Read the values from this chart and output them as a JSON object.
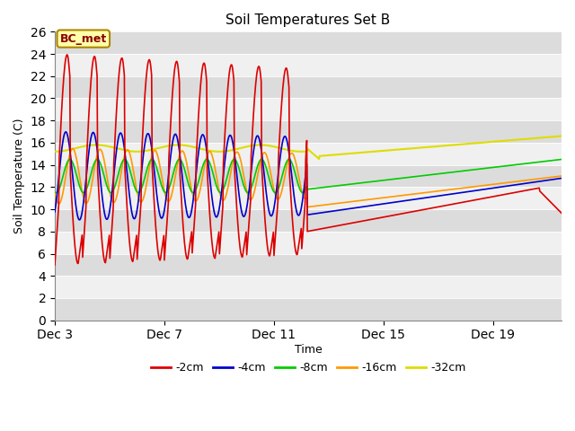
{
  "title": "Soil Temperatures Set B",
  "xlabel": "Time",
  "ylabel": "Soil Temperature (C)",
  "ylim": [
    0,
    26
  ],
  "yticks": [
    0,
    2,
    4,
    6,
    8,
    10,
    12,
    14,
    16,
    18,
    20,
    22,
    24,
    26
  ],
  "xtick_positions": [
    0,
    4,
    8,
    12,
    16
  ],
  "xtick_labels": [
    "Dec 3",
    "Dec 7",
    "Dec 11",
    "Dec 15",
    "Dec 19"
  ],
  "xlim": [
    0,
    18.5
  ],
  "bg_color": "#f0f0f0",
  "plot_bg_light": "#f0f0f0",
  "plot_bg_dark": "#dcdcdc",
  "annotation_text": "BC_met",
  "annotation_bg": "#ffffaa",
  "annotation_border": "#aa8800",
  "legend_entries": [
    "-2cm",
    "-4cm",
    "-8cm",
    "-16cm",
    "-32cm"
  ],
  "line_colors": [
    "#dd0000",
    "#0000cc",
    "#00cc00",
    "#ff9900",
    "#dddd00"
  ],
  "oscillation_end": 9.2,
  "total_days": 18.5,
  "post_start_2cm": 8.0,
  "post_end_2cm": 12.3,
  "post_start_4cm": 9.5,
  "post_end_4cm": 12.8,
  "post_start_8cm": 11.8,
  "post_end_8cm": 14.5,
  "post_start_16cm": 10.2,
  "post_end_16cm": 13.0,
  "post_start_32cm": 14.8,
  "post_end_32cm": 16.6
}
